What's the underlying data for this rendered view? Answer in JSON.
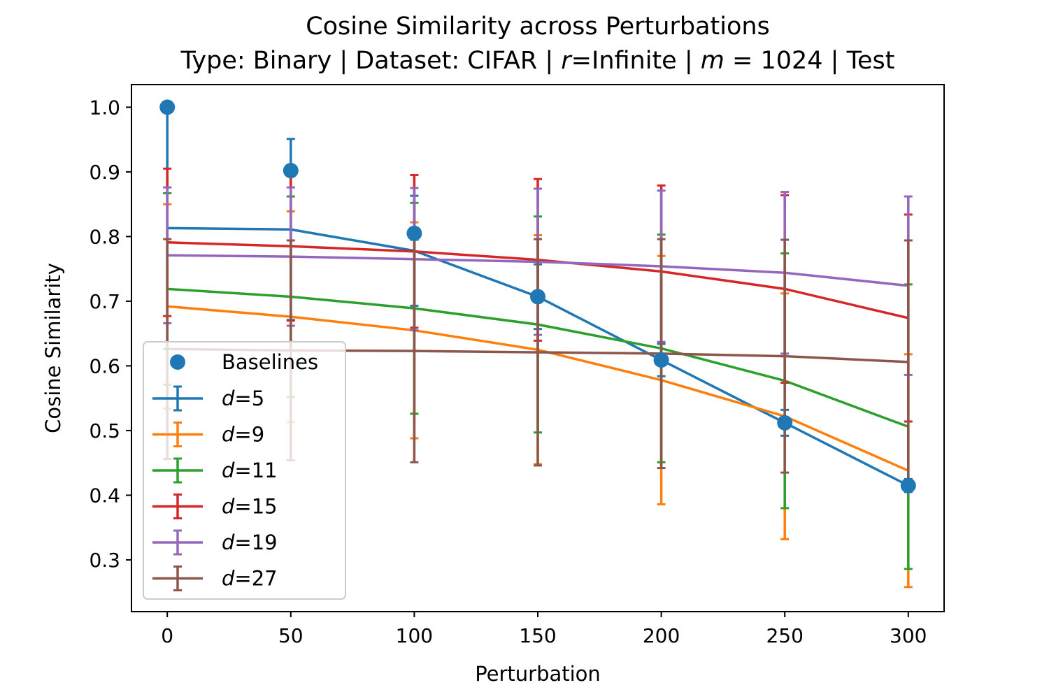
{
  "chart_data": {
    "type": "line",
    "title_line1": "Cosine Similarity across Perturbations",
    "title_line2": {
      "prefix": "Type: Binary | Dataset: CIFAR | ",
      "r_var": "r",
      "r_value": "=Infinite | ",
      "m_var": "m",
      "m_value": " = 1024 | Test"
    },
    "xlabel": "Perturbation",
    "ylabel": "Cosine Similarity",
    "xlim": [
      -14.5,
      314.5
    ],
    "ylim": [
      0.22,
      1.035
    ],
    "x_ticks": [
      0,
      50,
      100,
      150,
      200,
      250,
      300
    ],
    "x_tick_labels": [
      "0",
      "50",
      "100",
      "150",
      "200",
      "250",
      "300"
    ],
    "y_ticks": [
      0.3,
      0.4,
      0.5,
      0.6,
      0.7,
      0.8,
      0.9,
      1.0
    ],
    "y_tick_labels": [
      "0.3",
      "0.4",
      "0.5",
      "0.6",
      "0.7",
      "0.8",
      "0.9",
      "1.0"
    ],
    "grid": false,
    "legend_position": "lower left",
    "x": [
      0,
      50,
      100,
      150,
      200,
      250,
      300
    ],
    "baselines": {
      "name": "Baselines",
      "color": "#1f77b4",
      "values": [
        1.0,
        0.902,
        0.805,
        0.707,
        0.609,
        0.512,
        0.415
      ]
    },
    "series": [
      {
        "name_var": "d",
        "name_value": "=5",
        "color": "#1f77b4",
        "values": [
          0.813,
          0.811,
          0.778,
          0.707,
          0.609,
          0.512,
          0.415
        ],
        "err": [
          0.187,
          0.14,
          0.085,
          0.05,
          0.025,
          0.02,
          0.01
        ]
      },
      {
        "name_var": "d",
        "name_value": "=9",
        "color": "#ff7f0e",
        "values": [
          0.692,
          0.676,
          0.655,
          0.625,
          0.578,
          0.522,
          0.438
        ],
        "err": [
          0.158,
          0.163,
          0.167,
          0.177,
          0.192,
          0.19,
          0.18
        ]
      },
      {
        "name_var": "d",
        "name_value": "=11",
        "color": "#2ca02c",
        "values": [
          0.719,
          0.707,
          0.689,
          0.664,
          0.627,
          0.577,
          0.506
        ],
        "err": [
          0.148,
          0.155,
          0.163,
          0.167,
          0.176,
          0.197,
          0.22
        ]
      },
      {
        "name_var": "d",
        "name_value": "=15",
        "color": "#d62728",
        "values": [
          0.791,
          0.785,
          0.777,
          0.764,
          0.746,
          0.719,
          0.674
        ],
        "err": [
          0.114,
          0.115,
          0.118,
          0.125,
          0.133,
          0.145,
          0.16
        ]
      },
      {
        "name_var": "d",
        "name_value": "=19",
        "color": "#9467bd",
        "values": [
          0.771,
          0.769,
          0.765,
          0.761,
          0.754,
          0.744,
          0.724
        ],
        "err": [
          0.105,
          0.107,
          0.11,
          0.113,
          0.117,
          0.125,
          0.138
        ]
      },
      {
        "name_var": "d",
        "name_value": "=27",
        "color": "#8c564b",
        "values": [
          0.626,
          0.624,
          0.623,
          0.621,
          0.619,
          0.615,
          0.606
        ],
        "err": [
          0.17,
          0.17,
          0.172,
          0.175,
          0.177,
          0.18,
          0.188
        ]
      }
    ]
  }
}
